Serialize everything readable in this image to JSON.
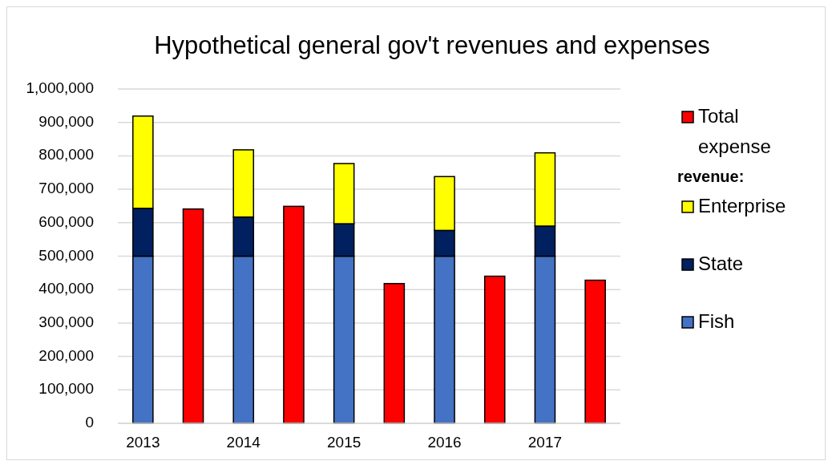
{
  "chart_data": {
    "type": "bar",
    "title": "Hypothetical general gov't revenues and expenses",
    "categories": [
      "2013",
      null,
      "2014",
      null,
      "2015",
      null,
      "2016",
      null,
      "2017",
      null
    ],
    "stacked": true,
    "series": [
      {
        "name": "Fish",
        "color": "#4472c4",
        "values": [
          500000,
          null,
          500000,
          null,
          500000,
          null,
          500000,
          null,
          500000,
          null
        ]
      },
      {
        "name": "State",
        "color": "#002060",
        "values": [
          143000,
          null,
          117000,
          null,
          97000,
          null,
          77000,
          null,
          90000,
          null
        ]
      },
      {
        "name": "Enterprise",
        "color": "#ffff00",
        "values": [
          276000,
          null,
          201000,
          null,
          180000,
          null,
          161000,
          null,
          219000,
          null
        ]
      },
      {
        "name": "Total expense",
        "color": "#ff0000",
        "values": [
          null,
          641000,
          null,
          649000,
          null,
          418000,
          null,
          440000,
          null,
          428000
        ]
      }
    ],
    "legend_title": "revenue:",
    "legend": "right",
    "grid": "y",
    "ylim": [
      0,
      1000000
    ],
    "yticks": [
      {
        "value": 0,
        "label": "0"
      },
      {
        "value": 100000,
        "label": "100,000"
      },
      {
        "value": 200000,
        "label": "200,000"
      },
      {
        "value": 300000,
        "label": "300,000"
      },
      {
        "value": 400000,
        "label": "400,000"
      },
      {
        "value": 500000,
        "label": "500,000"
      },
      {
        "value": 600000,
        "label": "600,000"
      },
      {
        "value": 700000,
        "label": "700,000"
      },
      {
        "value": 800000,
        "label": "800,000"
      },
      {
        "value": 900000,
        "label": "900,000"
      },
      {
        "value": 1000000,
        "label": "1,000,000"
      }
    ]
  }
}
